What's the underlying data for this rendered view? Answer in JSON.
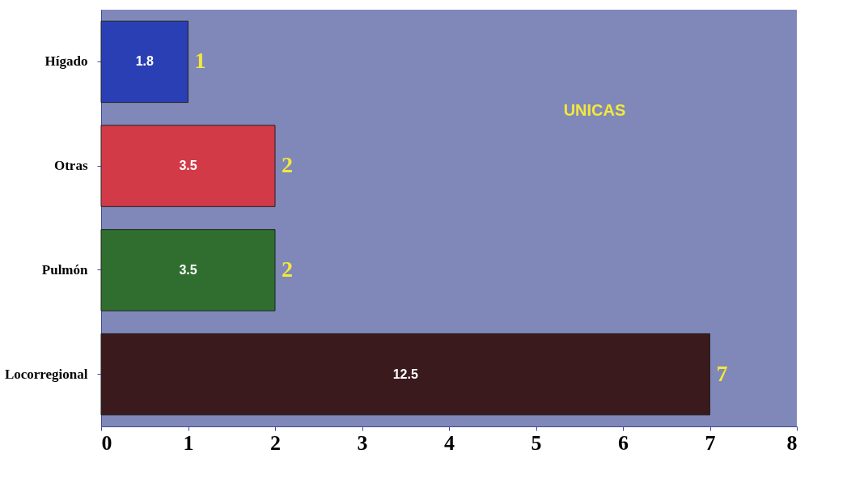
{
  "chart_data": {
    "type": "bar",
    "orientation": "horizontal",
    "categories": [
      "Hígado",
      "Otras",
      "Pulmón",
      "Locorregional"
    ],
    "values": [
      1,
      2,
      2,
      7
    ],
    "colors": [
      "#2b3fb5",
      "#d23a48",
      "#2f6e2f",
      "#3a1a1c"
    ],
    "data_labels": true,
    "xlim": [
      0,
      8
    ],
    "xticks": [
      0,
      1,
      2,
      3,
      4,
      5,
      6,
      7,
      8
    ],
    "grid": false,
    "legend": false,
    "annotations": [
      "UNICAS",
      "1.8",
      "3.5",
      "3.5",
      "12.5"
    ]
  }
}
